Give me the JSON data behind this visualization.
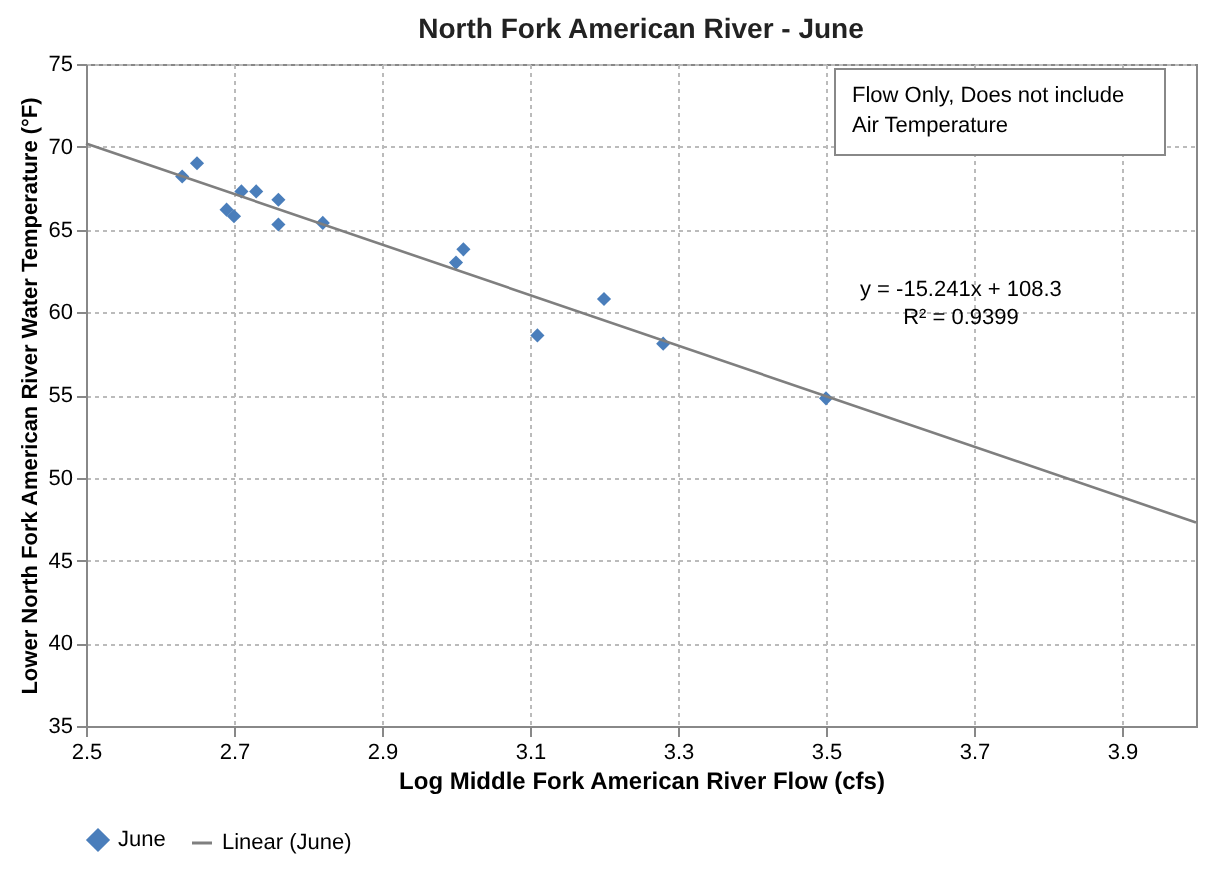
{
  "chart_data": {
    "type": "scatter",
    "title": "North Fork American River - June",
    "xlabel": "Log Middle Fork American River Flow (cfs)",
    "ylabel": "Lower North Fork American River Water Temperature (°F)",
    "xlim": [
      2.5,
      4.0
    ],
    "xticks": [
      2.5,
      2.7,
      2.9,
      3.1,
      3.3,
      3.5,
      3.7,
      3.9
    ],
    "ylim": [
      35,
      75
    ],
    "yticks": [
      35,
      40,
      45,
      50,
      55,
      60,
      65,
      70,
      75
    ],
    "grid": true,
    "legend": "bottom",
    "series": [
      {
        "name": "June",
        "color": "#4a7ebb",
        "marker": "diamond",
        "x": [
          2.63,
          2.65,
          2.69,
          2.7,
          2.71,
          2.73,
          2.76,
          2.76,
          2.82,
          3.0,
          3.01,
          3.11,
          3.2,
          3.28,
          3.5
        ],
        "values": [
          68.2,
          69.0,
          66.2,
          65.8,
          67.3,
          67.3,
          65.3,
          66.8,
          65.4,
          63.0,
          63.8,
          58.6,
          60.8,
          58.1,
          54.8
        ]
      },
      {
        "name": "Linear (June)",
        "type": "line",
        "color": "#7f7f7f",
        "line_style": "solid",
        "marker": "none",
        "x": [
          2.5,
          4.0
        ],
        "values": [
          70.2,
          47.3
        ]
      }
    ],
    "annotations": [
      "Flow Only, Does not include Air Temperature",
      "y = -15.241x + 108.3\nR² = 0.9399"
    ]
  }
}
